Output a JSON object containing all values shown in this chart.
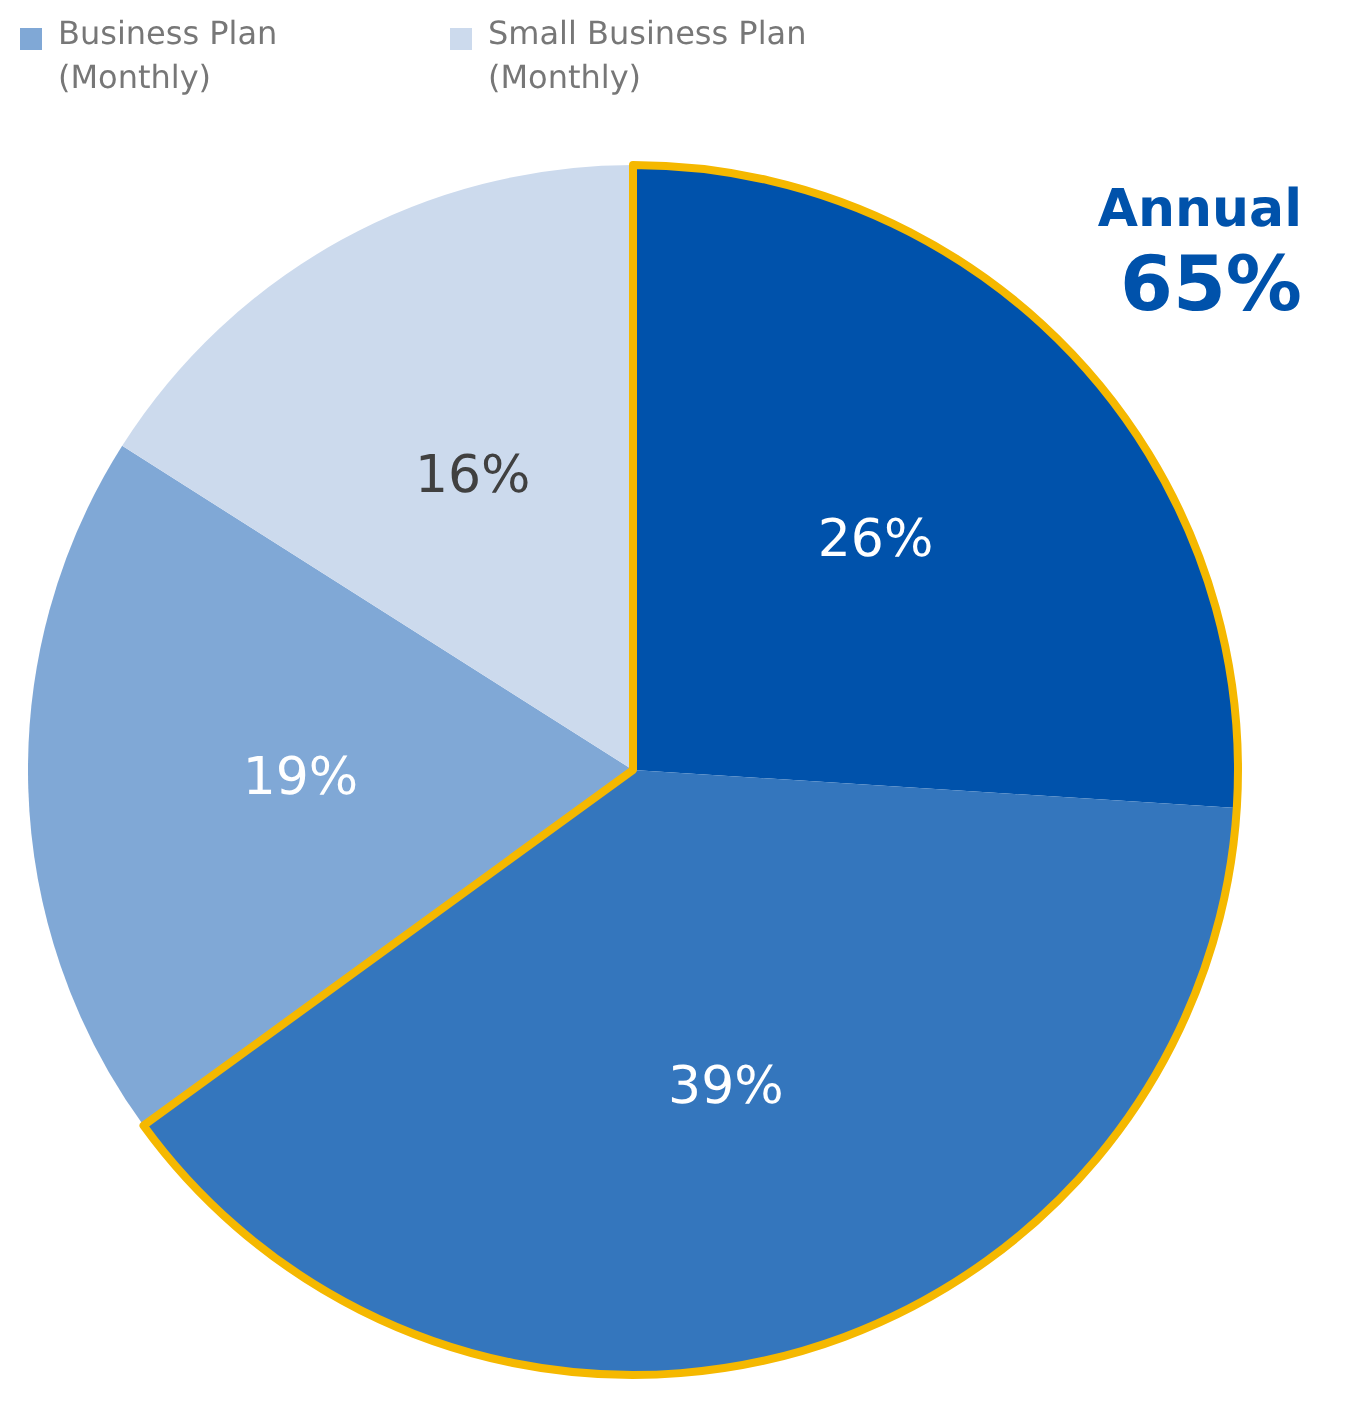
{
  "chart_data": {
    "type": "pie",
    "categories": [
      null,
      null,
      "Business Plan (Monthly)",
      "Small Business Plan (Monthly)"
    ],
    "values": [
      26,
      39,
      19,
      16
    ],
    "colors": [
      "#0052ab",
      "#3476bd",
      "#80a8d6",
      "#ccdaed"
    ],
    "value_labels": [
      "26%",
      "39%",
      "19%",
      "16%"
    ],
    "legend": "top left",
    "annotations": [
      "Annual",
      "65%"
    ]
  }
}
